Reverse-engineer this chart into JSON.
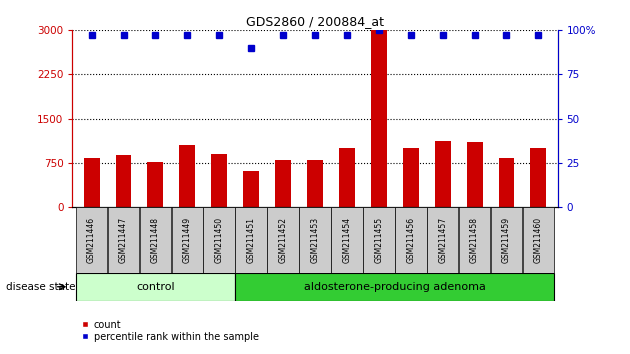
{
  "title": "GDS2860 / 200884_at",
  "samples": [
    "GSM211446",
    "GSM211447",
    "GSM211448",
    "GSM211449",
    "GSM211450",
    "GSM211451",
    "GSM211452",
    "GSM211453",
    "GSM211454",
    "GSM211455",
    "GSM211456",
    "GSM211457",
    "GSM211458",
    "GSM211459",
    "GSM211460"
  ],
  "counts": [
    830,
    880,
    760,
    1050,
    900,
    620,
    790,
    790,
    1000,
    3000,
    1000,
    1120,
    1100,
    840,
    1000
  ],
  "percentiles": [
    97,
    97,
    97,
    97,
    97,
    90,
    97,
    97,
    97,
    100,
    97,
    97,
    97,
    97,
    97
  ],
  "ylim_left": [
    0,
    3000
  ],
  "ylim_right": [
    0,
    100
  ],
  "yticks_left": [
    0,
    750,
    1500,
    2250,
    3000
  ],
  "ytick_labels_left": [
    "0",
    "750",
    "1500",
    "2250",
    "3000"
  ],
  "yticks_right": [
    0,
    25,
    50,
    75,
    100
  ],
  "ytick_labels_right": [
    "0",
    "25",
    "50",
    "75",
    "100%"
  ],
  "bar_color": "#cc0000",
  "dot_color": "#0000cc",
  "control_label": "control",
  "adenoma_label": "aldosterone-producing adenoma",
  "disease_state_label": "disease state",
  "legend_count": "count",
  "legend_percentile": "percentile rank within the sample",
  "control_color": "#ccffcc",
  "adenoma_color": "#33cc33",
  "tick_bg_color": "#cccccc",
  "n_control": 5,
  "n_adenoma": 10
}
